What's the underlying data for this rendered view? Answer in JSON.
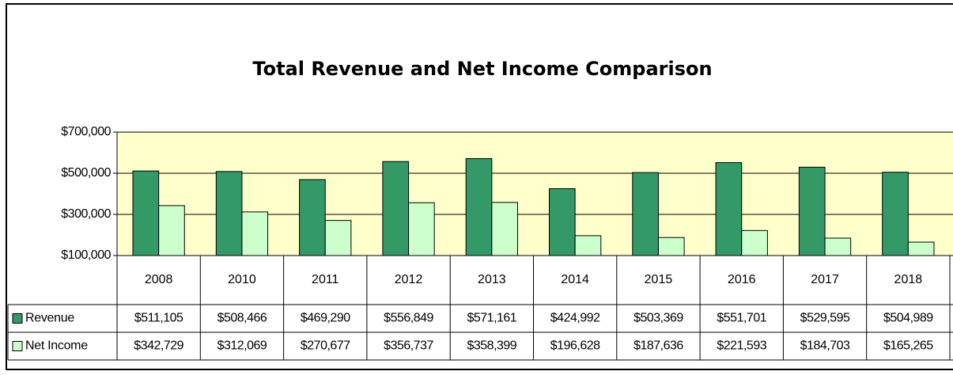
{
  "chart_data": {
    "type": "bar",
    "title": "Total Revenue and Net Income Comparison",
    "categories": [
      "2008",
      "2010",
      "2011",
      "2012",
      "2013",
      "2014",
      "2015",
      "2016",
      "2017",
      "2018"
    ],
    "series": [
      {
        "name": "Revenue",
        "color": "#339966",
        "values": [
          511105,
          508466,
          469290,
          556849,
          571161,
          424992,
          503369,
          551701,
          529595,
          504989
        ],
        "value_labels": [
          "$511,105",
          "$508,466",
          "$469,290",
          "$556,849",
          "$571,161",
          "$424,992",
          "$503,369",
          "$551,701",
          "$529,595",
          "$504,989"
        ]
      },
      {
        "name": "Net Income",
        "color": "#ccffcc",
        "values": [
          342729,
          312069,
          270677,
          356737,
          358399,
          196628,
          187636,
          221593,
          184703,
          165265
        ],
        "value_labels": [
          "$342,729",
          "$312,069",
          "$270,677",
          "$356,737",
          "$358,399",
          "$196,628",
          "$187,636",
          "$221,593",
          "$184,703",
          "$165,265"
        ]
      }
    ],
    "ylim": [
      100000,
      700000
    ],
    "yticks": [
      {
        "value": 100000,
        "label": "$100,000"
      },
      {
        "value": 300000,
        "label": "$300,000"
      },
      {
        "value": 500000,
        "label": "$500,000"
      },
      {
        "value": 700000,
        "label": "$700,000"
      }
    ],
    "grid": true,
    "plot_background": "#ffffcc"
  }
}
